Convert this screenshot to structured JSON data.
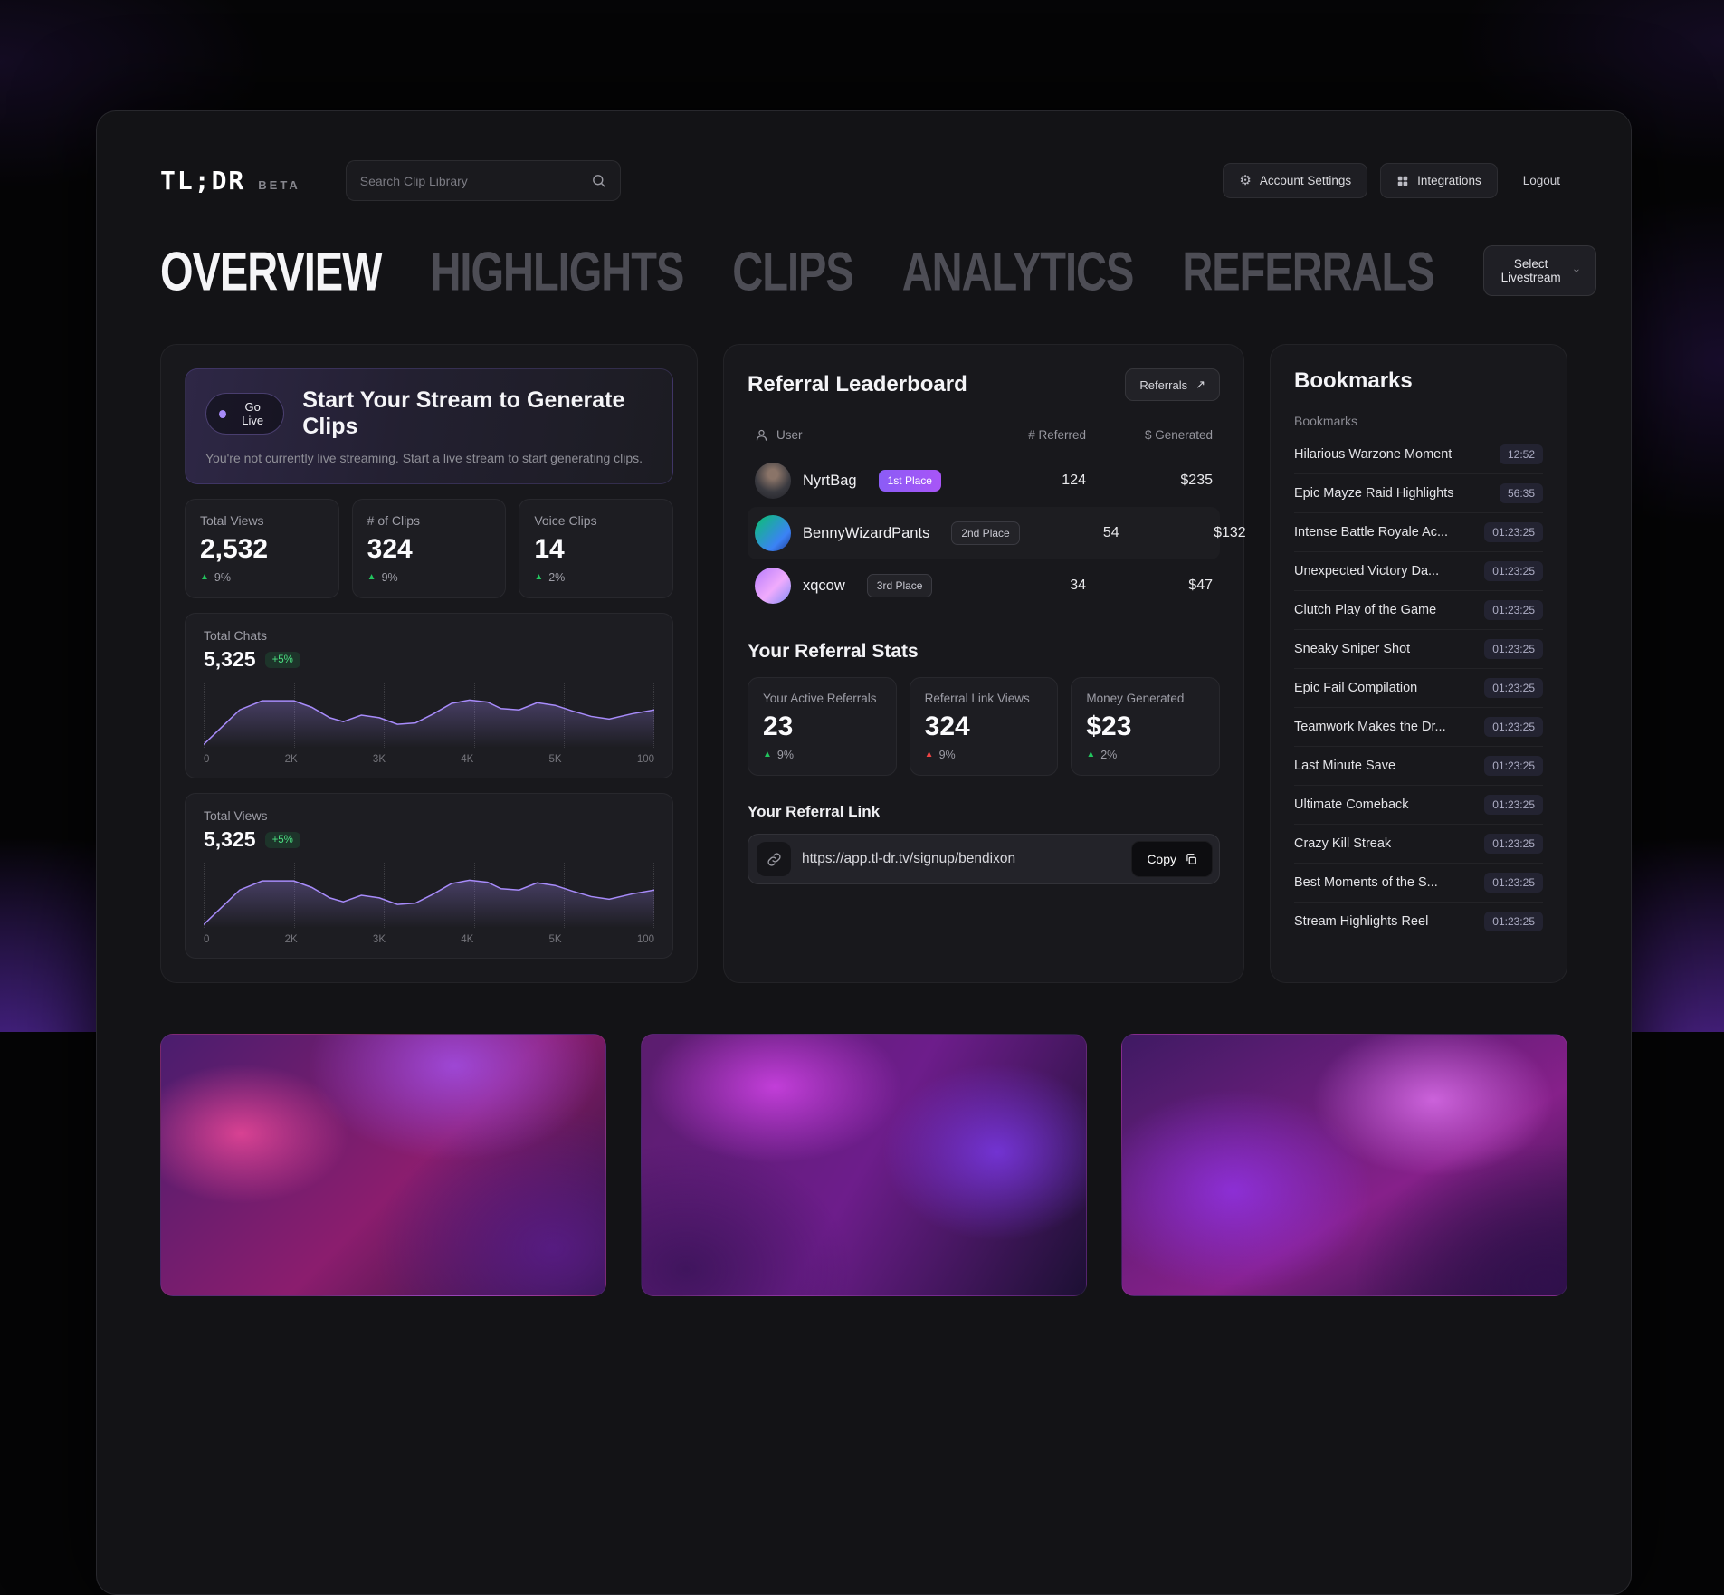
{
  "icons": {
    "gear": "⚙",
    "triangle": "▲",
    "arrow_up_right": "↗"
  },
  "topbar": {
    "logo": "TL;DR",
    "beta": "BETA",
    "search_placeholder": "Search Clip Library",
    "account_settings": "Account Settings",
    "integrations": "Integrations",
    "logout": "Logout"
  },
  "nav": {
    "tabs": [
      {
        "label": "OVERVIEW",
        "active": true
      },
      {
        "label": "HIGHLIGHTS",
        "active": false
      },
      {
        "label": "CLIPS",
        "active": false
      },
      {
        "label": "ANALYTICS",
        "active": false
      },
      {
        "label": "REFERRALS",
        "active": false
      }
    ],
    "livestream_select": "Select Livestream"
  },
  "overview": {
    "stream_banner": {
      "badge": "Go Live",
      "title": "Start Your Stream to Generate Clips",
      "subtitle": "You're not currently live streaming. Start a live stream to start generating clips."
    },
    "stats": [
      {
        "label": "Total Views",
        "value": "2,532",
        "delta": "9%",
        "trend": "up"
      },
      {
        "label": "# of Clips",
        "value": "324",
        "delta": "9%",
        "trend": "up"
      },
      {
        "label": "Voice Clips",
        "value": "14",
        "delta": "2%",
        "trend": "up"
      }
    ],
    "charts": [
      {
        "type": "line",
        "label": "Total Chats",
        "value": "5,325",
        "delta": "+5%",
        "x_ticks": [
          "0",
          "2K",
          "3K",
          "4K",
          "5K",
          "100"
        ],
        "points": [
          [
            0,
            5
          ],
          [
            8,
            58
          ],
          [
            13,
            72
          ],
          [
            20,
            72
          ],
          [
            24,
            62
          ],
          [
            28,
            46
          ],
          [
            31,
            40
          ],
          [
            35,
            50
          ],
          [
            39,
            46
          ],
          [
            43,
            36
          ],
          [
            47,
            38
          ],
          [
            51,
            52
          ],
          [
            55,
            68
          ],
          [
            59,
            73
          ],
          [
            63,
            70
          ],
          [
            66,
            60
          ],
          [
            70,
            58
          ],
          [
            74,
            69
          ],
          [
            78,
            65
          ],
          [
            82,
            56
          ],
          [
            86,
            48
          ],
          [
            90,
            44
          ],
          [
            95,
            52
          ],
          [
            100,
            58
          ]
        ]
      },
      {
        "type": "line",
        "label": "Total Views",
        "value": "5,325",
        "delta": "+5%",
        "x_ticks": [
          "0",
          "2K",
          "3K",
          "4K",
          "5K",
          "100"
        ],
        "points": [
          [
            0,
            5
          ],
          [
            8,
            58
          ],
          [
            13,
            72
          ],
          [
            20,
            72
          ],
          [
            24,
            62
          ],
          [
            28,
            46
          ],
          [
            31,
            40
          ],
          [
            35,
            50
          ],
          [
            39,
            46
          ],
          [
            43,
            36
          ],
          [
            47,
            38
          ],
          [
            51,
            52
          ],
          [
            55,
            68
          ],
          [
            59,
            73
          ],
          [
            63,
            70
          ],
          [
            66,
            60
          ],
          [
            70,
            58
          ],
          [
            74,
            69
          ],
          [
            78,
            65
          ],
          [
            82,
            56
          ],
          [
            86,
            48
          ],
          [
            90,
            44
          ],
          [
            95,
            52
          ],
          [
            100,
            58
          ]
        ]
      }
    ]
  },
  "leaderboard": {
    "title": "Referral Leaderboard",
    "action_label": "Referrals",
    "columns": {
      "user": "User",
      "referred": "# Referred",
      "generated": "$ Generated"
    },
    "rows": [
      {
        "name": "NyrtBag",
        "place": "1st Place",
        "referred": "124",
        "generated": "$235"
      },
      {
        "name": "BennyWizardPants",
        "place": "2nd Place",
        "referred": "54",
        "generated": "$132"
      },
      {
        "name": "xqcow",
        "place": "3rd Place",
        "referred": "34",
        "generated": "$47"
      }
    ]
  },
  "referral_stats": {
    "title": "Your Referral Stats",
    "cards": [
      {
        "label": "Your Active Referrals",
        "value": "23",
        "delta": "9%",
        "trend": "up"
      },
      {
        "label": "Referral Link Views",
        "value": "324",
        "delta": "9%",
        "trend": "down"
      },
      {
        "label": "Money Generated",
        "value": "$23",
        "delta": "2%",
        "trend": "up"
      }
    ]
  },
  "referral_link": {
    "title": "Your Referral Link",
    "url": "https://app.tl-dr.tv/signup/bendixon",
    "copy_label": "Copy"
  },
  "bookmarks": {
    "title": "Bookmarks",
    "subtitle": "Bookmarks",
    "items": [
      {
        "label": "Hilarious Warzone Moment",
        "time": "12:52"
      },
      {
        "label": "Epic Mayze Raid Highlights",
        "time": "56:35"
      },
      {
        "label": "Intense Battle Royale Ac...",
        "time": "01:23:25"
      },
      {
        "label": "Unexpected Victory Da...",
        "time": "01:23:25"
      },
      {
        "label": "Clutch Play of the Game",
        "time": "01:23:25"
      },
      {
        "label": "Sneaky Sniper Shot",
        "time": "01:23:25"
      },
      {
        "label": "Epic Fail Compilation",
        "time": "01:23:25"
      },
      {
        "label": "Teamwork Makes the Dr...",
        "time": "01:23:25"
      },
      {
        "label": "Last Minute Save",
        "time": "01:23:25"
      },
      {
        "label": "Ultimate Comeback",
        "time": "01:23:25"
      },
      {
        "label": "Crazy Kill Streak",
        "time": "01:23:25"
      },
      {
        "label": "Best Moments of the S...",
        "time": "01:23:25"
      },
      {
        "label": "Stream Highlights Reel",
        "time": "01:23:25"
      }
    ]
  }
}
